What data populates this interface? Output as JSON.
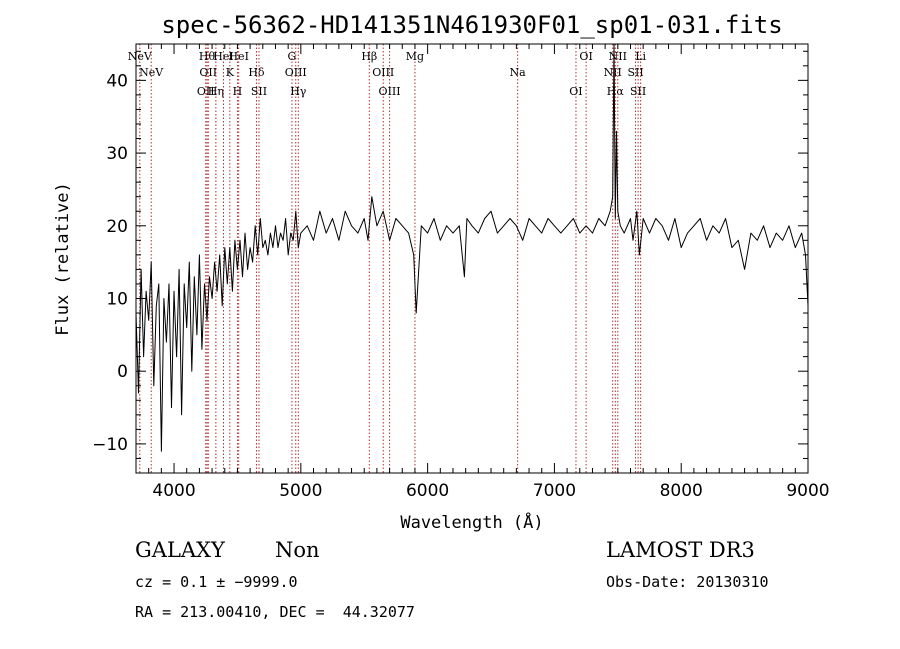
{
  "chart_data": {
    "type": "line",
    "title": "spec-56362-HD141351N461930F01_sp01-031.fits",
    "xlabel": "Wavelength (Å)",
    "ylabel": "Flux (relative)",
    "xlim": [
      3700,
      9000
    ],
    "ylim": [
      -14,
      45
    ],
    "xticks": [
      4000,
      5000,
      6000,
      7000,
      8000,
      9000
    ],
    "yticks": [
      -10,
      0,
      10,
      20,
      30,
      40
    ],
    "tick_labels_x": [
      "4000",
      "5000",
      "6000",
      "7000",
      "8000",
      "9000"
    ],
    "tick_labels_y": [
      "−10",
      "0",
      "10",
      "20",
      "30",
      "40"
    ],
    "series": [
      {
        "name": "flux",
        "x": [
          3700,
          3720,
          3740,
          3760,
          3780,
          3800,
          3820,
          3840,
          3860,
          3880,
          3900,
          3920,
          3940,
          3960,
          3980,
          4000,
          4020,
          4040,
          4060,
          4080,
          4100,
          4120,
          4140,
          4160,
          4180,
          4200,
          4220,
          4240,
          4260,
          4280,
          4300,
          4320,
          4340,
          4360,
          4380,
          4400,
          4420,
          4440,
          4460,
          4480,
          4500,
          4520,
          4540,
          4560,
          4580,
          4600,
          4620,
          4640,
          4660,
          4680,
          4700,
          4720,
          4740,
          4760,
          4780,
          4800,
          4820,
          4840,
          4860,
          4880,
          4900,
          4920,
          4940,
          4960,
          4980,
          5000,
          5050,
          5100,
          5150,
          5200,
          5250,
          5300,
          5350,
          5400,
          5450,
          5500,
          5530,
          5560,
          5600,
          5650,
          5700,
          5750,
          5800,
          5850,
          5890,
          5910,
          5950,
          6000,
          6050,
          6100,
          6150,
          6200,
          6250,
          6290,
          6310,
          6350,
          6400,
          6450,
          6500,
          6550,
          6600,
          6650,
          6700,
          6750,
          6800,
          6850,
          6900,
          6950,
          7000,
          7050,
          7100,
          7150,
          7200,
          7250,
          7300,
          7350,
          7400,
          7440,
          7460,
          7470,
          7480,
          7490,
          7500,
          7520,
          7550,
          7600,
          7620,
          7650,
          7670,
          7700,
          7750,
          7800,
          7850,
          7900,
          7950,
          8000,
          8050,
          8100,
          8150,
          8200,
          8250,
          8300,
          8350,
          8400,
          8450,
          8500,
          8550,
          8600,
          8650,
          8700,
          8750,
          8800,
          8850,
          8900,
          8950,
          8980,
          9000
        ],
        "values": [
          8,
          -3,
          14,
          2,
          11,
          7,
          15,
          -2,
          9,
          12,
          -11,
          10,
          4,
          12,
          -5,
          11,
          2,
          14,
          -6,
          12,
          6,
          15,
          0,
          13,
          5,
          16,
          3,
          12,
          7,
          13,
          10,
          15,
          11,
          16,
          9,
          17,
          12,
          17,
          11,
          18,
          14,
          18,
          13,
          19,
          14,
          17,
          15,
          20,
          16,
          21,
          17,
          18,
          16,
          19,
          17,
          20,
          17,
          19,
          18,
          21,
          16,
          19,
          18,
          22,
          17,
          19,
          20,
          18,
          22,
          19,
          21,
          18,
          22,
          20,
          19,
          21,
          18,
          24,
          20,
          22,
          18,
          21,
          20,
          19,
          16,
          8,
          20,
          19,
          21,
          18,
          20,
          19,
          20,
          13,
          21,
          20,
          19,
          21,
          22,
          19,
          20,
          21,
          20,
          18,
          21,
          20,
          19,
          21,
          20,
          19,
          20,
          21,
          19,
          20,
          19,
          21,
          20,
          22,
          24,
          45,
          21,
          33,
          22,
          20,
          19,
          21,
          18,
          22,
          16,
          21,
          19,
          21,
          20,
          18,
          21,
          17,
          19,
          20,
          21,
          18,
          20,
          19,
          21,
          17,
          18,
          14,
          19,
          18,
          20,
          17,
          19,
          18,
          20,
          17,
          19,
          16,
          9
        ]
      }
    ],
    "lines": [
      {
        "label": "NeV",
        "x": 3730
      },
      {
        "label": "NeV",
        "x": 3820
      },
      {
        "label": "OII",
        "x": 4250
      },
      {
        "label": "Hθ",
        "x": 4260
      },
      {
        "label": "OII",
        "x": 4270
      },
      {
        "label": "Hη",
        "x": 4330
      },
      {
        "label": "HeI",
        "x": 4390
      },
      {
        "label": "K",
        "x": 4440
      },
      {
        "label": "H",
        "x": 4500
      },
      {
        "label": "HeI",
        "x": 4510
      },
      {
        "label": "Hδ",
        "x": 4650
      },
      {
        "label": "SII",
        "x": 4670
      },
      {
        "label": "G",
        "x": 4930
      },
      {
        "label": "OIII",
        "x": 4960
      },
      {
        "label": "Hγ",
        "x": 4980
      },
      {
        "label": "Hβ",
        "x": 5540
      },
      {
        "label": "OIII",
        "x": 5650
      },
      {
        "label": "OIII",
        "x": 5700
      },
      {
        "label": "Mg",
        "x": 5900
      },
      {
        "label": "Na",
        "x": 6710
      },
      {
        "label": "OI",
        "x": 7170
      },
      {
        "label": "OI",
        "x": 7250
      },
      {
        "label": "NII",
        "x": 7460
      },
      {
        "label": "Hα",
        "x": 7480
      },
      {
        "label": "NII",
        "x": 7500
      },
      {
        "label": "SII",
        "x": 7640
      },
      {
        "label": "SII",
        "x": 7660
      },
      {
        "label": "Li",
        "x": 7680
      }
    ]
  },
  "info": {
    "class_label": "GALAXY",
    "subclass_label": "Non",
    "survey": "LAMOST DR3",
    "cz_text": "cz = 0.1 ± −9999.0",
    "obs_date": "Obs-Date: 20130310",
    "coords": "RA = 213.00410, DEC =  44.32077"
  },
  "colors": {
    "spectrum": "#000000",
    "line_markers": "#b03030"
  }
}
